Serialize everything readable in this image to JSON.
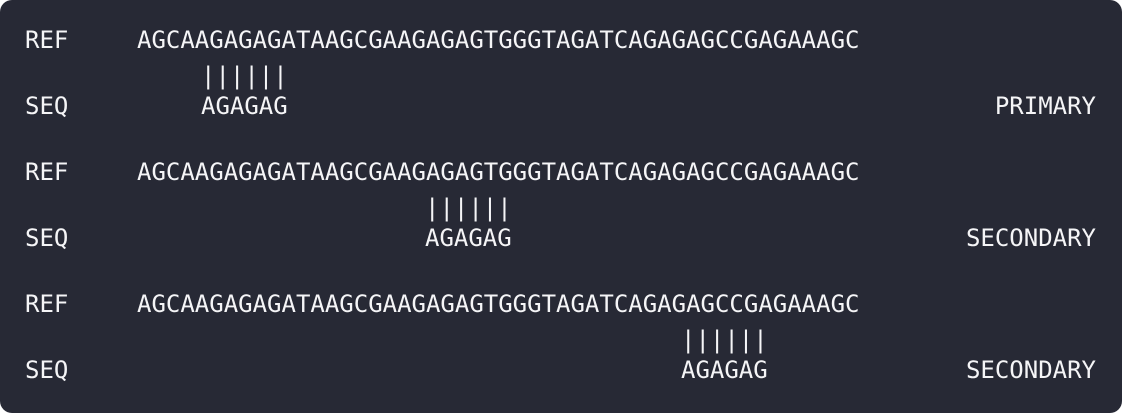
{
  "alignments": [
    {
      "ref_label": "REF",
      "ref_sequence": "AGCAAGAGAGATAAGCGAAGAGAGTGGGTAGATCAGAGAGCCGAGAAAGC",
      "match_bars": "||||||",
      "seq_label": "SEQ",
      "read_sequence": "AGAGAG",
      "alignment_type": "PRIMARY"
    },
    {
      "ref_label": "REF",
      "ref_sequence": "AGCAAGAGAGATAAGCGAAGAGAGTGGGTAGATCAGAGAGCCGAGAAAGC",
      "match_bars": "||||||",
      "seq_label": "SEQ",
      "read_sequence": "AGAGAG",
      "alignment_type": "SECONDARY"
    },
    {
      "ref_label": "REF",
      "ref_sequence": "AGCAAGAGAGATAAGCGAAGAGAGTGGGTAGATCAGAGAGCCGAGAAAGC",
      "match_bars": "||||||",
      "seq_label": "SEQ",
      "read_sequence": "AGAGAG",
      "alignment_type": "SECONDARY"
    }
  ],
  "colors": {
    "background": "#272935",
    "text": "#f5f5f7"
  }
}
